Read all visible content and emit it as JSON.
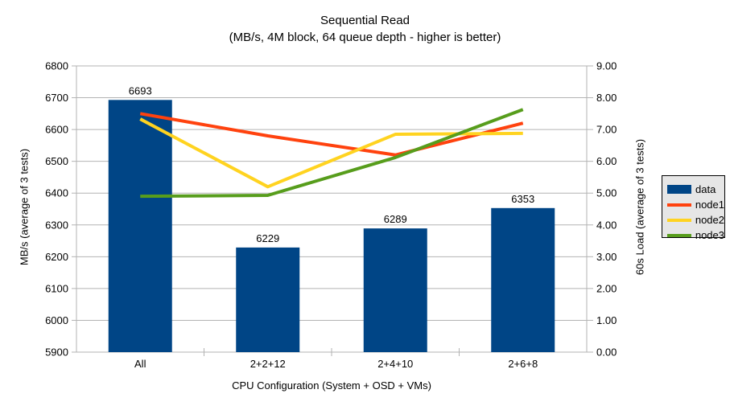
{
  "chart_data": {
    "type": "bar+line",
    "title": "Sequential Read",
    "subtitle": "(MB/s, 4M block, 64 queue depth - higher is better)",
    "categories": [
      "All",
      "2+2+12",
      "2+4+10",
      "2+6+8"
    ],
    "xlabel": "CPU Configuration (System + OSD + VMs)",
    "left_axis": {
      "label": "MB/s (average of 3 tests)",
      "min": 5900,
      "max": 6800,
      "step": 100
    },
    "right_axis": {
      "label": "60s Load (average of 3 tests)",
      "min": 0,
      "max": 9,
      "step": 1
    },
    "bar_series": {
      "name": "data",
      "color": "#004586",
      "values": [
        6693,
        6229,
        6289,
        6353
      ]
    },
    "line_series": [
      {
        "name": "node1",
        "color": "#ff420e",
        "values": [
          7.5,
          6.8,
          6.2,
          7.2
        ]
      },
      {
        "name": "node2",
        "color": "#ffd320",
        "values": [
          7.33,
          5.2,
          6.85,
          6.88
        ]
      },
      {
        "name": "node3",
        "color": "#579d1c",
        "values": [
          4.9,
          4.93,
          6.12,
          7.63
        ]
      }
    ],
    "grid_color": "#b3b3b3",
    "text_color": "#000000",
    "legend": {
      "position": "right",
      "background": "#e6e6e6",
      "border": "#000000"
    }
  }
}
